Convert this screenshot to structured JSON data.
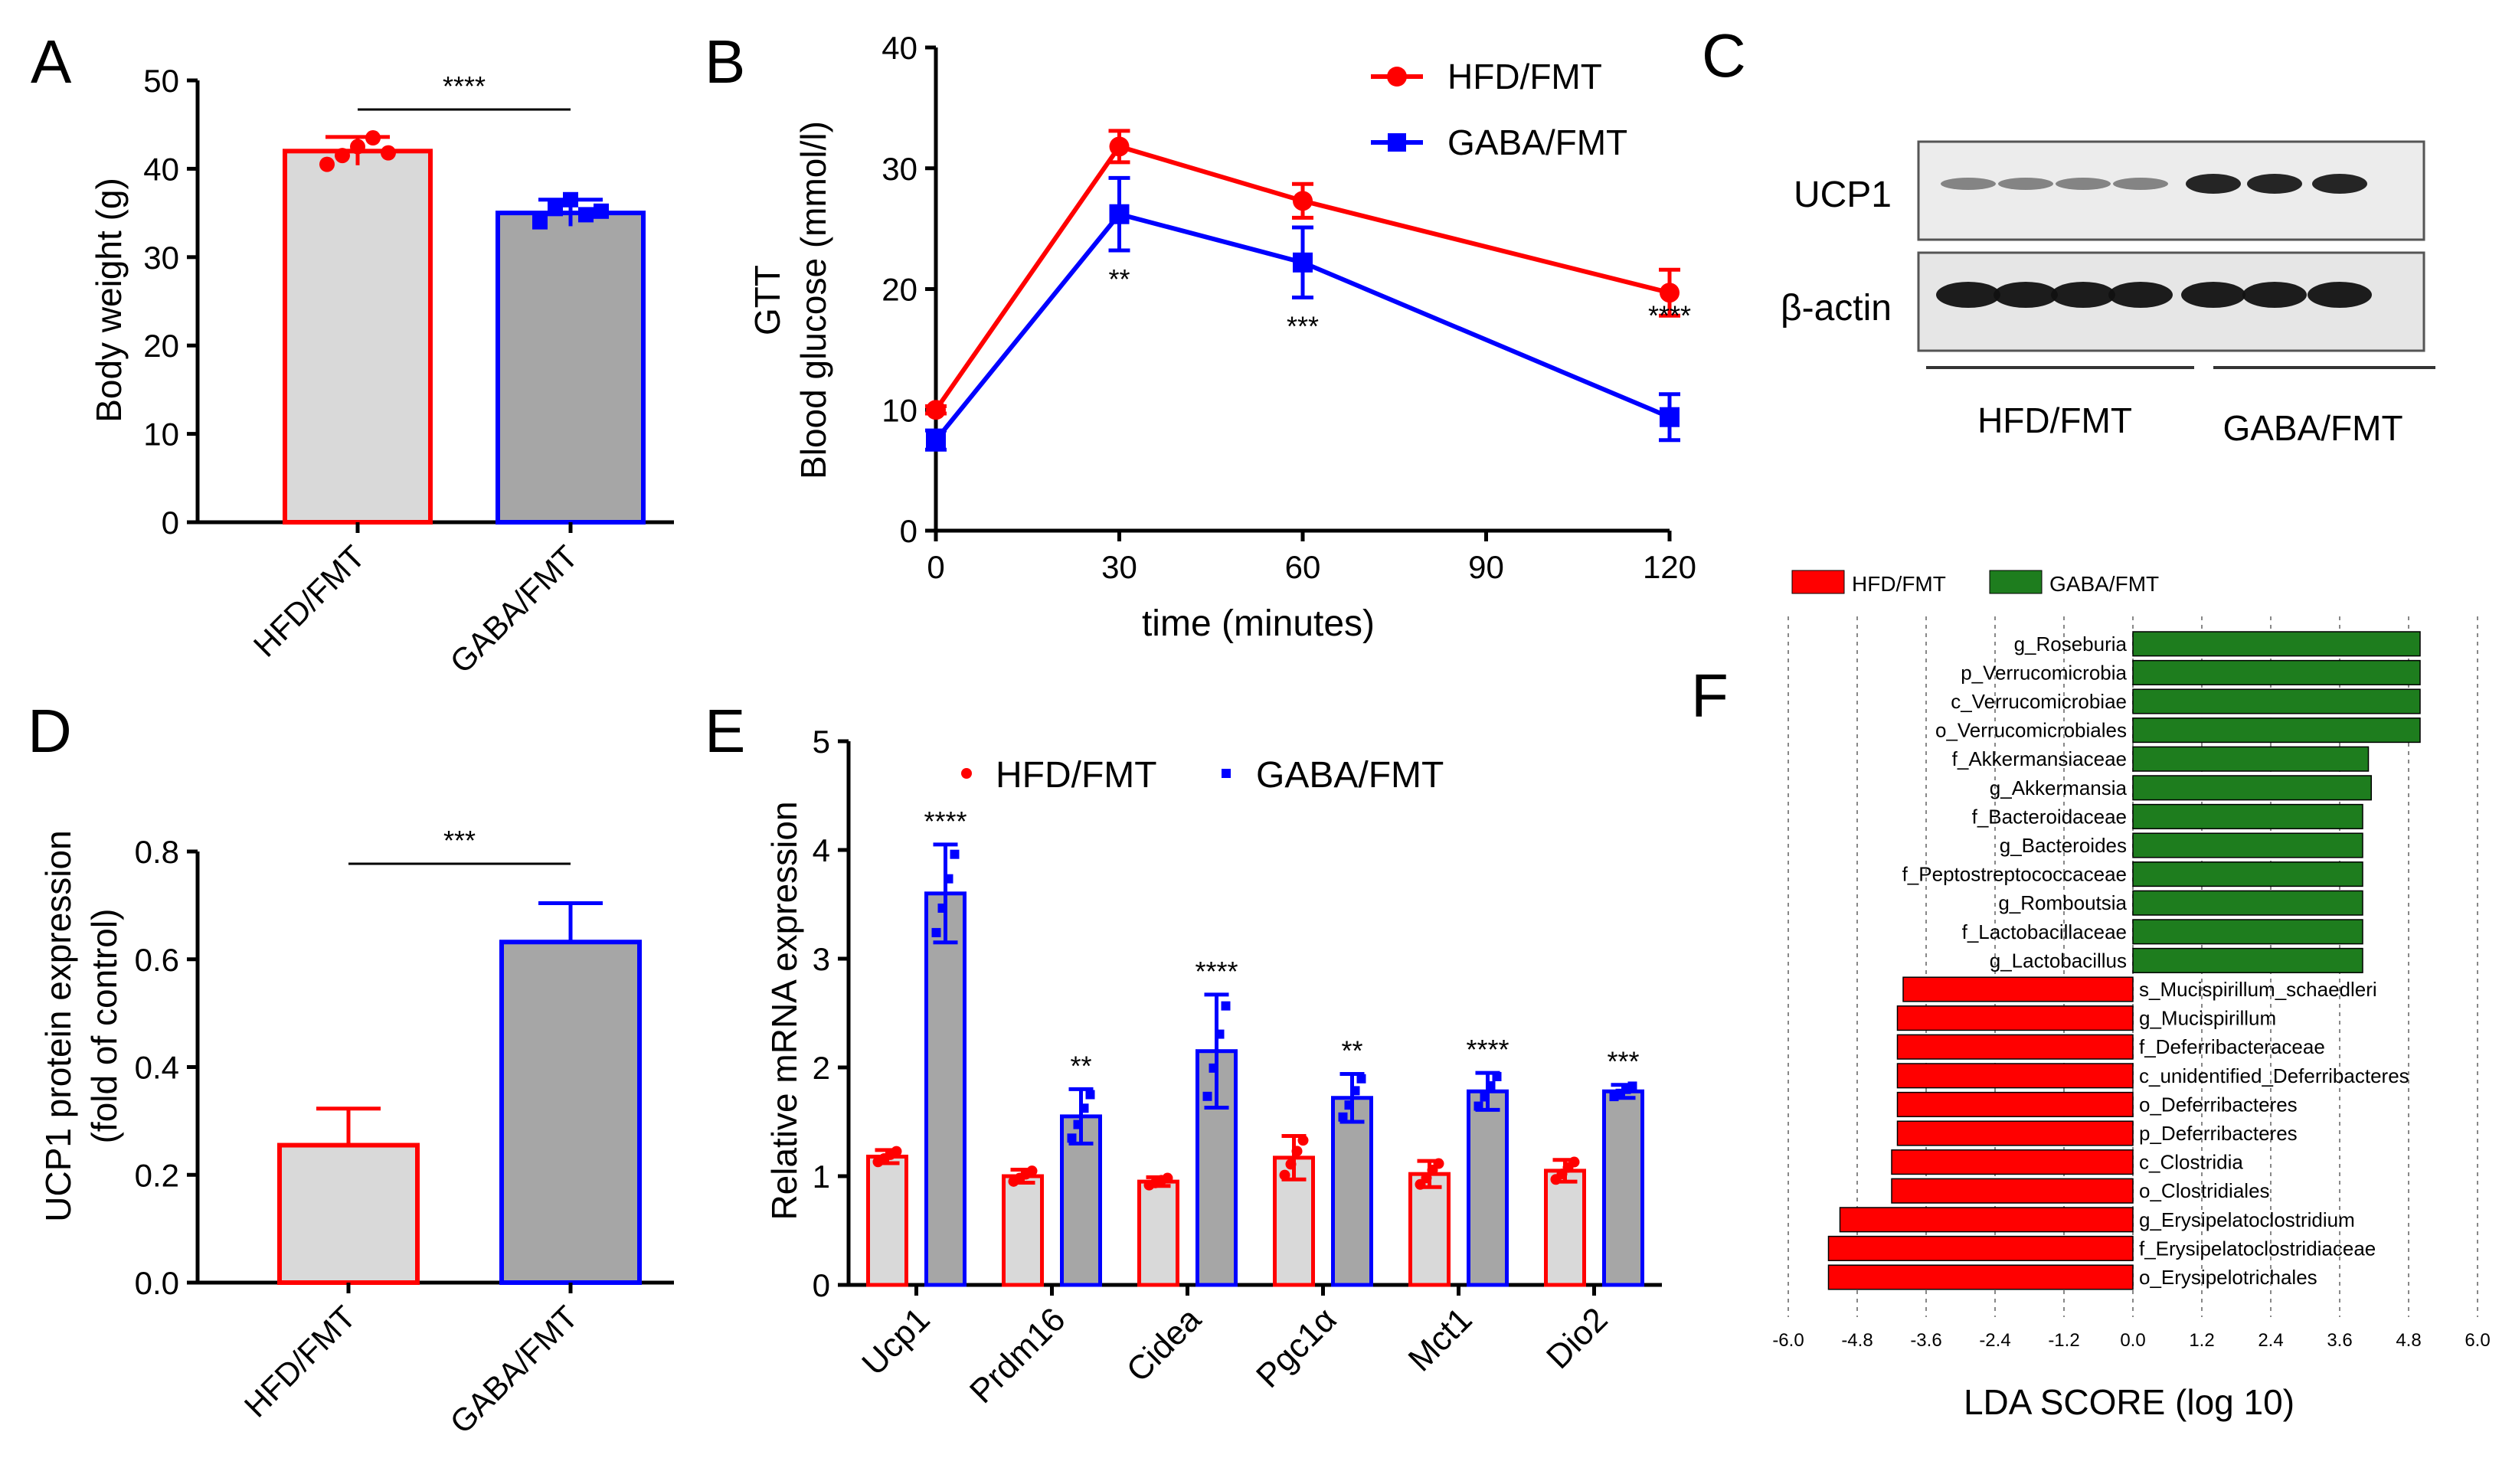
{
  "colors": {
    "hfd": "#ff0000",
    "gaba": "#0000ff",
    "bar_light": "#d9d9d9",
    "bar_dark": "#a6a6a6",
    "lefse_green": "#1e7d1e",
    "lefse_red": "#ff0000"
  },
  "chart_data": [
    {
      "panel": "A",
      "type": "bar",
      "title": "",
      "ylabel": "Body weight (g)",
      "ylim": [
        0,
        50
      ],
      "yticks": [
        "0",
        "10",
        "20",
        "30",
        "40",
        "50"
      ],
      "categories": [
        "HFD/FMT",
        "GABA/FMT"
      ],
      "values": [
        42,
        35
      ],
      "errors": [
        1.6,
        1.5
      ],
      "points": [
        [
          40.5,
          41.5,
          42.5,
          43.5,
          41.8
        ],
        [
          34,
          35.5,
          36.5,
          34.8,
          35.2
        ]
      ],
      "significance": "****"
    },
    {
      "panel": "B",
      "type": "line",
      "title": "GTT",
      "xlabel": "time (minutes)",
      "ylabel": "Blood glucose (mmol/l)",
      "xlim": [
        0,
        120
      ],
      "ylim": [
        0,
        40
      ],
      "xticks": [
        "0",
        "30",
        "60",
        "90",
        "120"
      ],
      "yticks": [
        "0",
        "10",
        "20",
        "30",
        "40"
      ],
      "x": [
        0,
        30,
        60,
        120
      ],
      "series": [
        {
          "name": "HFD/FMT",
          "values": [
            10,
            31.8,
            27.3,
            19.7
          ],
          "errors": [
            0.3,
            1.3,
            1.4,
            1.9
          ]
        },
        {
          "name": "GABA/FMT",
          "values": [
            7.5,
            26.2,
            22.2,
            9.4
          ],
          "errors": [
            0.8,
            3.0,
            2.9,
            1.9
          ]
        }
      ],
      "significance": [
        {
          "x": 30,
          "label": "**"
        },
        {
          "x": 60,
          "label": "***"
        },
        {
          "x": 120,
          "label": "****"
        }
      ]
    },
    {
      "panel": "D",
      "type": "bar",
      "title": "",
      "ylabel": "UCP1 protein expression",
      "ylabel2": "(fold of control)",
      "ylim": [
        0,
        0.8
      ],
      "yticks": [
        "0.0",
        "0.2",
        "0.4",
        "0.6",
        "0.8"
      ],
      "categories": [
        "HFD/FMT",
        "GABA/FMT"
      ],
      "values": [
        0.255,
        0.632
      ],
      "errors": [
        0.068,
        0.072
      ],
      "significance": "***"
    },
    {
      "panel": "E",
      "type": "bar",
      "title": "",
      "ylabel": "Relative mRNA expression",
      "ylim": [
        0,
        5
      ],
      "yticks": [
        "0",
        "1",
        "2",
        "3",
        "4",
        "5"
      ],
      "categories": [
        "Ucp1",
        "Prdm16",
        "Cidea",
        "Pgc1α",
        "Mct1",
        "Dio2"
      ],
      "series": [
        {
          "name": "HFD/FMT",
          "values": [
            1.18,
            1.0,
            0.95,
            1.17,
            1.02,
            1.05
          ],
          "errors": [
            0.06,
            0.06,
            0.04,
            0.2,
            0.12,
            0.1
          ]
        },
        {
          "name": "GABA/FMT",
          "values": [
            3.6,
            1.55,
            2.15,
            1.72,
            1.78,
            1.78
          ],
          "errors": [
            0.45,
            0.25,
            0.52,
            0.22,
            0.17,
            0.06
          ]
        }
      ],
      "significance": [
        "****",
        "**",
        "****",
        "**",
        "****",
        "***"
      ]
    },
    {
      "panel": "F",
      "type": "bar",
      "orientation": "horizontal",
      "title": "",
      "xlabel": "LDA SCORE (log 10)",
      "xlim": [
        -6,
        6
      ],
      "xticks": [
        "-6.0",
        "-4.8",
        "-3.6",
        "-2.4",
        "-1.2",
        "0.0",
        "1.2",
        "2.4",
        "3.6",
        "4.8",
        "6.0"
      ],
      "legend": [
        "HFD/FMT",
        "GABA/FMT"
      ],
      "categories": [
        "g_Roseburia",
        "p_Verrucomicrobia",
        "c_Verrucomicrobiae",
        "o_Verrucomicrobiales",
        "f_Akkermansiaceae",
        "g_Akkermansia",
        "f_Bacteroidaceae",
        "g_Bacteroides",
        "f_Peptostreptococcaceae",
        "g_Romboutsia",
        "f_Lactobacillaceae",
        "g_Lactobacillus",
        "s_Mucispirillum_schaedleri",
        "g_Mucispirillum",
        "f_Deferribacteraceae",
        "c_unidentified_Deferribacteres",
        "o_Deferribacteres",
        "p_Deferribacteres",
        "c_Clostridia",
        "o_Clostridiales",
        "g_Erysipelatoclostridium",
        "f_Erysipelatoclostridiaceae",
        "o_Erysipelotrichales"
      ],
      "values": [
        5.0,
        5.0,
        5.0,
        5.0,
        4.1,
        4.15,
        4.0,
        4.0,
        4.0,
        4.0,
        4.0,
        4.0,
        -4.0,
        -4.1,
        -4.1,
        -4.1,
        -4.1,
        -4.1,
        -4.2,
        -4.2,
        -5.1,
        -5.3,
        -5.3
      ]
    }
  ],
  "panel_c": {
    "label": "C",
    "rows": [
      "UCP1",
      "β-actin"
    ],
    "groups": [
      "HFD/FMT",
      "GABA/FMT"
    ]
  },
  "panel_labels": [
    "A",
    "B",
    "D",
    "E",
    "F"
  ],
  "panel_b_legend": [
    "HFD/FMT",
    "GABA/FMT"
  ],
  "panel_e_legend": [
    "HFD/FMT",
    "GABA/FMT"
  ]
}
